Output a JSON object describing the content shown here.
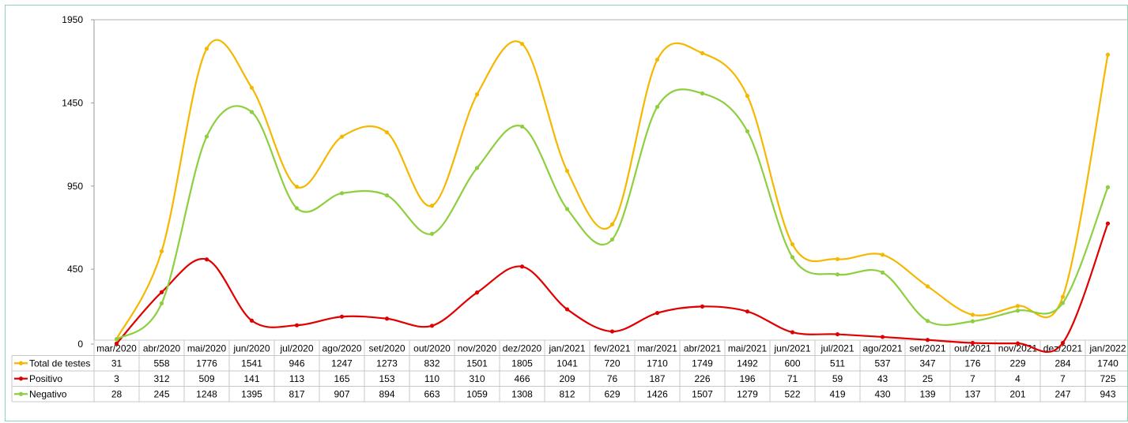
{
  "chart_data": {
    "type": "line",
    "smooth": true,
    "grid": false,
    "legend": "table-left",
    "ylim": [
      0,
      1950
    ],
    "y_ticks": [
      0,
      450,
      950,
      1450,
      1950
    ],
    "categories": [
      "mar/2020",
      "abr/2020",
      "mai/2020",
      "jun/2020",
      "jul/2020",
      "ago/2020",
      "set/2020",
      "out/2020",
      "nov/2020",
      "dez/2020",
      "jan/2021",
      "fev/2021",
      "mar/2021",
      "abr/2021",
      "mai/2021",
      "jun/2021",
      "jul/2021",
      "ago/2021",
      "set/2021",
      "out/2021",
      "nov/2021",
      "dez/2021",
      "jan/2022"
    ],
    "series": [
      {
        "name": "Total de testes",
        "color": "#f5b800",
        "values": [
          31,
          558,
          1776,
          1541,
          946,
          1247,
          1273,
          832,
          1501,
          1805,
          1041,
          720,
          1710,
          1749,
          1492,
          600,
          511,
          537,
          347,
          176,
          229,
          284,
          1740
        ]
      },
      {
        "name": "Positivo",
        "color": "#e00000",
        "values": [
          3,
          312,
          509,
          141,
          113,
          165,
          153,
          110,
          310,
          466,
          209,
          76,
          187,
          226,
          196,
          71,
          59,
          43,
          25,
          7,
          4,
          7,
          725
        ]
      },
      {
        "name": "Negativo",
        "color": "#8dcf3f",
        "values": [
          28,
          245,
          1248,
          1395,
          817,
          907,
          894,
          663,
          1059,
          1308,
          812,
          629,
          1426,
          1507,
          1279,
          522,
          419,
          430,
          139,
          137,
          201,
          247,
          943
        ]
      }
    ]
  }
}
